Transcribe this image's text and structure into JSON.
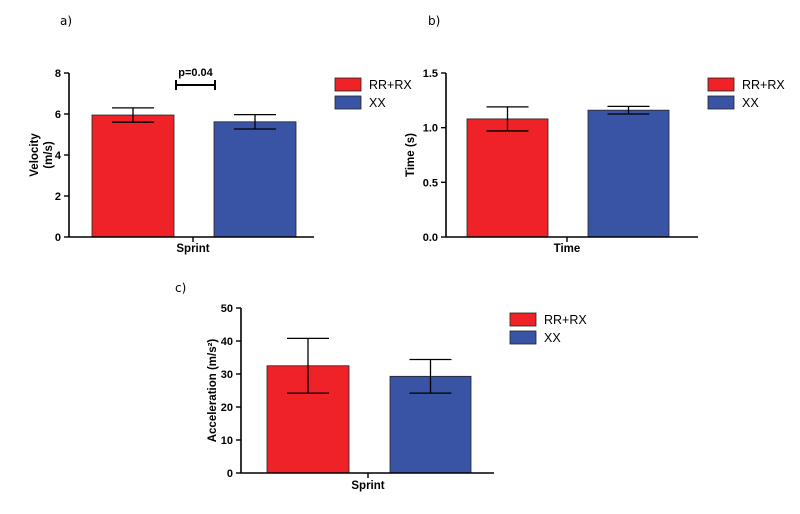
{
  "colors": {
    "RR+RX": "#ee2227",
    "XX": "#3a54a5"
  },
  "chart_data": [
    {
      "type": "bar",
      "panel_label": "a)",
      "categories": [
        "Sprint"
      ],
      "series": [
        {
          "name": "RR+RX",
          "values": [
            5.95
          ],
          "error": [
            0.35
          ]
        },
        {
          "name": "XX",
          "values": [
            5.62
          ],
          "error": [
            0.35
          ]
        }
      ],
      "xlabel": "Sprint",
      "ylabel_lines": [
        "Velocity",
        "(m/s)"
      ],
      "ylim": [
        0,
        8
      ],
      "yticks": [
        "0",
        "2",
        "4",
        "6",
        "8"
      ],
      "annotation": "p=0.04",
      "legend": [
        "RR+RX",
        "XX"
      ],
      "legend_position": "right",
      "grid": false
    },
    {
      "type": "bar",
      "panel_label": "b)",
      "categories": [
        "Time"
      ],
      "series": [
        {
          "name": "RR+RX",
          "values": [
            1.08
          ],
          "error": [
            0.11
          ]
        },
        {
          "name": "XX",
          "values": [
            1.16
          ],
          "error": [
            0.035
          ]
        }
      ],
      "xlabel": "Time",
      "ylabel_lines": [
        "Time (s)"
      ],
      "ylim": [
        0,
        1.5
      ],
      "yticks": [
        "0.0",
        "0.5",
        "1.0",
        "1.5"
      ],
      "legend": [
        "RR+RX",
        "XX"
      ],
      "legend_position": "right",
      "grid": false
    },
    {
      "type": "bar",
      "panel_label": "c)",
      "categories": [
        "Sprint"
      ],
      "series": [
        {
          "name": "RR+RX",
          "values": [
            32.5
          ],
          "error": [
            8.3
          ]
        },
        {
          "name": "XX",
          "values": [
            29.3
          ],
          "error": [
            5.1
          ]
        }
      ],
      "xlabel": "Sprint",
      "ylabel_lines": [
        "Acceleration (m/s²)"
      ],
      "ylim": [
        0,
        50
      ],
      "yticks": [
        "0",
        "10",
        "20",
        "30",
        "40",
        "50"
      ],
      "legend": [
        "RR+RX",
        "XX"
      ],
      "legend_position": "right",
      "grid": false
    }
  ]
}
